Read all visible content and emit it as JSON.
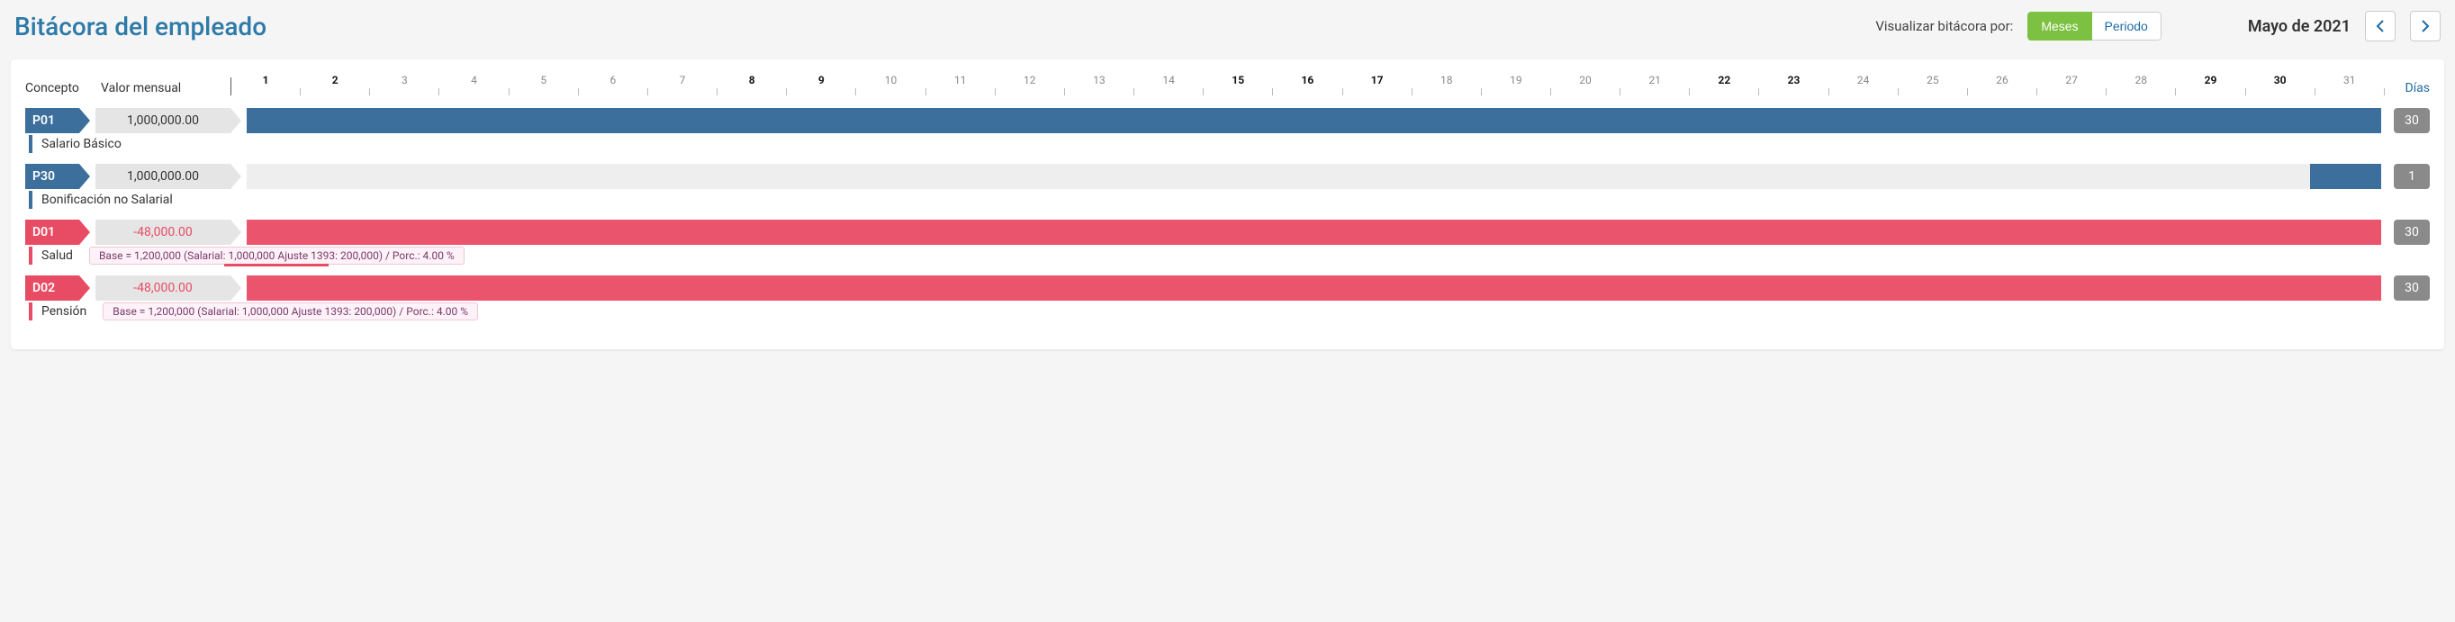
{
  "header": {
    "title": "Bitácora del empleado",
    "view_label": "Visualizar bitácora por:",
    "view_options": {
      "months": "Meses",
      "period": "Periodo"
    },
    "active_view": "months",
    "month_label": "Mayo de 2021"
  },
  "table_headers": {
    "concepto": "Concepto",
    "valor_mensual": "Valor mensual",
    "dias": "Días"
  },
  "timeline": {
    "days_in_month": 31,
    "bold_days": [
      1,
      2,
      8,
      9,
      15,
      16,
      17,
      22,
      23,
      29,
      30
    ],
    "track_days": 30
  },
  "rows": [
    {
      "code": "P01",
      "code_color": "blue",
      "value": "1,000,000.00",
      "value_sign": "positive",
      "description": "Salario Básico",
      "bar_color": "blue",
      "bar_start": 1,
      "bar_end": 30,
      "days_count": "30",
      "detail": null
    },
    {
      "code": "P30",
      "code_color": "blue",
      "value": "1,000,000.00",
      "value_sign": "positive",
      "description": "Bonificación no Salarial",
      "bar_color": "blue",
      "bar_start": 30,
      "bar_end": 30,
      "days_count": "1",
      "detail": null
    },
    {
      "code": "D01",
      "code_color": "red",
      "value": "-48,000.00",
      "value_sign": "negative",
      "description": "Salud",
      "bar_color": "red",
      "bar_start": 1,
      "bar_end": 30,
      "days_count": "30",
      "detail": "Base = 1,200,000 (Salarial: 1,000,000 Ajuste 1393: 200,000) / Porc.: 4.00 %",
      "detail_underline": {
        "left_pct": 36,
        "width_pct": 28
      }
    },
    {
      "code": "D02",
      "code_color": "red",
      "value": "-48,000.00",
      "value_sign": "negative",
      "description": "Pensión",
      "bar_color": "red",
      "bar_start": 1,
      "bar_end": 30,
      "days_count": "30",
      "detail": "Base = 1,200,000 (Salarial: 1,000,000 Ajuste 1393: 200,000) / Porc.: 4.00 %",
      "detail_underline": null
    }
  ],
  "colors": {
    "blue": "#3d6f9c",
    "red": "#e84c64",
    "green": "#7cc142",
    "link": "#1f6aa5",
    "badge_bg": "#8a8a8a",
    "track_bg": "#eeeeee"
  }
}
